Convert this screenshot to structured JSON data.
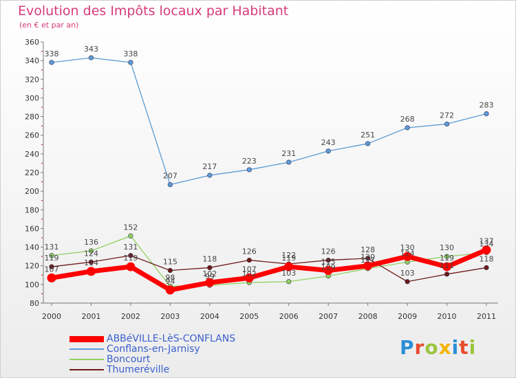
{
  "title": "Evolution des Impôts locaux par Habitant",
  "subtitle": "(en € et par an)",
  "logo_text": "Proxiti",
  "logo_colors": [
    "#2a8fd6",
    "#e84c2f",
    "#9bc53d",
    "#f4b400",
    "#2a8fd6",
    "#e84c2f",
    "#9bc53d"
  ],
  "chart_data": {
    "type": "line",
    "categories": [
      "2000",
      "2001",
      "2002",
      "2003",
      "2004",
      "2005",
      "2006",
      "2007",
      "2008",
      "2009",
      "2010",
      "2011"
    ],
    "ylim": [
      80,
      360
    ],
    "yticks": [
      80,
      100,
      120,
      140,
      160,
      180,
      200,
      220,
      240,
      260,
      280,
      300,
      320,
      340,
      360
    ],
    "grid": false,
    "legend_position": "bottom-left",
    "series": [
      {
        "name": "ABBéVILLE-LèS-CONFLANS",
        "color": "#ff0000",
        "values": [
          107,
          114,
          119,
          94,
          102,
          107,
          119,
          115,
          120,
          130,
          119,
          137
        ],
        "labels": [
          "107",
          "114",
          "119",
          "94",
          "102",
          "107",
          "119",
          "115",
          "120",
          "130",
          "119",
          "137"
        ]
      },
      {
        "name": "Conflans-en-Jarnisy",
        "color": "#5b9bd5",
        "values": [
          338,
          343,
          338,
          207,
          217,
          223,
          231,
          243,
          251,
          268,
          272,
          283
        ],
        "labels": [
          "338",
          "343",
          "338",
          "207",
          "217",
          "223",
          "231",
          "243",
          "251",
          "268",
          "272",
          "283"
        ]
      },
      {
        "name": "Boncourt",
        "color": "#90d060",
        "values": [
          131,
          136,
          152,
          98,
          99,
          102,
          103,
          109,
          117,
          124,
          130,
          134
        ],
        "labels": [
          "131",
          "136",
          "152",
          "98",
          "99",
          "102",
          "103",
          "109",
          "117",
          "124",
          "130",
          "134"
        ]
      },
      {
        "name": "Thumeréville",
        "color": "#6e1a1a",
        "values": [
          119,
          124,
          131,
          115,
          118,
          126,
          122,
          126,
          128,
          103,
          111,
          118
        ],
        "labels": [
          "119",
          "124",
          "131",
          "115",
          "118",
          "126",
          "122",
          "126",
          "128",
          "103",
          "111",
          "118"
        ]
      }
    ]
  }
}
